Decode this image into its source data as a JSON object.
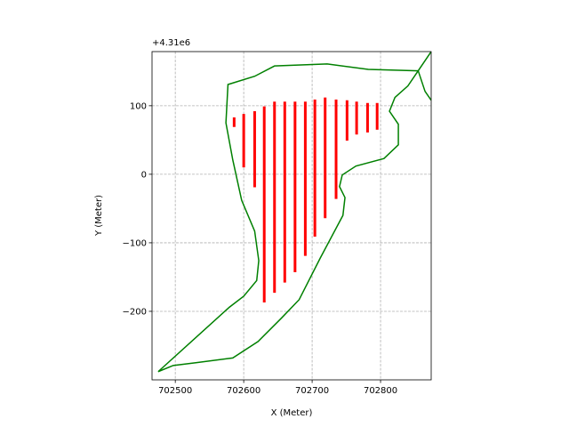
{
  "chart_data": {
    "type": "line",
    "x_label": "X (Meter)",
    "y_label": "Y (Meter)",
    "y_offset_label": "+4.31e6",
    "xlim": [
      702466,
      702874
    ],
    "ylim": [
      -300,
      179
    ],
    "xticks": [
      702500,
      702600,
      702700,
      702800
    ],
    "yticks": [
      {
        "value": -200,
        "label": "−200"
      },
      {
        "value": -100,
        "label": "−100"
      },
      0,
      100
    ],
    "grid": true,
    "lines": [
      {
        "color": "#008000",
        "x": [
          702475,
          702579,
          702600,
          702619,
          702622,
          702616,
          702597,
          702584,
          702574,
          702577,
          702616,
          702645,
          702722,
          702782,
          702855,
          702865,
          702874
        ],
        "y": [
          -288,
          -194,
          -178,
          -155,
          -126,
          -83,
          -38,
          21,
          75,
          131,
          143,
          158,
          161,
          153,
          151,
          121,
          108
        ]
      },
      {
        "color": "#008000",
        "x": [
          702874,
          702855,
          702840,
          702821,
          702813,
          702826,
          702826,
          702805,
          702764,
          702744,
          702740,
          702748,
          702745,
          702712,
          702681,
          702655,
          702621,
          702584,
          702530,
          702497,
          702475
        ],
        "y": [
          179,
          151,
          129,
          112,
          92,
          73,
          43,
          23,
          12,
          -1,
          -18,
          -34,
          -60,
          -122,
          -183,
          -210,
          -244,
          -268,
          -275,
          -279,
          -288
        ]
      }
    ],
    "segments": {
      "color": "#ff0000",
      "x": [
        702586,
        702600,
        702616,
        702630,
        702645,
        702660,
        702675,
        702690,
        702704,
        702719,
        702735,
        702751,
        702765,
        702781,
        702795
      ],
      "y0": [
        83,
        88,
        92,
        99,
        106,
        106,
        106,
        106,
        109,
        112,
        109,
        108,
        106,
        104,
        104
      ],
      "y1": [
        69,
        10,
        -19,
        -187,
        -173,
        -158,
        -143,
        -119,
        -91,
        -64,
        -36,
        49,
        58,
        61,
        65
      ]
    }
  }
}
